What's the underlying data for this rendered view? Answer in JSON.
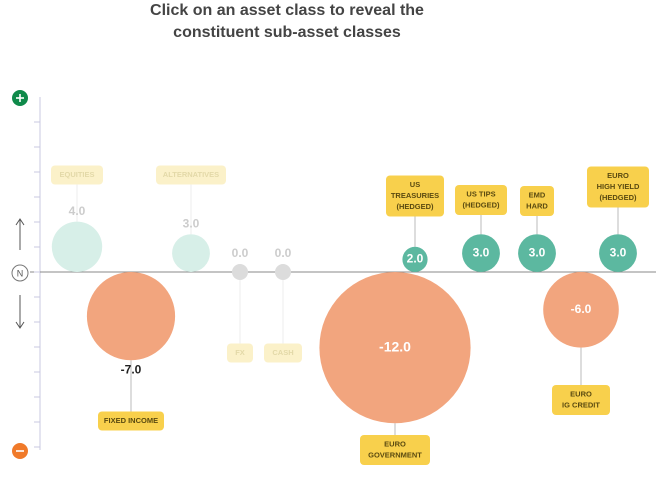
{
  "chart_data": {
    "type": "bubble",
    "title": [
      "Click on an asset class to reveal the",
      "constituent sub-asset classes"
    ],
    "axis_label": "N",
    "colors": {
      "positive": "#5cb8a0",
      "negative": "#f2a57e",
      "zero": "#dcdcdc",
      "faded": "#d7efe8",
      "tag": "#f8d04c",
      "tag_faded": "#fbf1c9"
    },
    "asset_classes": {
      "categories": [
        [
          "EQUITIES"
        ],
        [
          "FIXED INCOME"
        ],
        [
          "ALTERNATIVES"
        ],
        [
          "FX"
        ],
        [
          "CASH"
        ]
      ],
      "values": [
        4,
        -7,
        3,
        0,
        0
      ],
      "value_labels": [
        "4.0",
        "-7.0",
        "3.0",
        "0.0",
        "0.0"
      ],
      "selected": 1
    },
    "sub_asset_classes": {
      "categories": [
        [
          "US",
          "TREASURIES",
          "(HEDGED)"
        ],
        [
          "EURO",
          "GOVERNMENT"
        ],
        [
          "US TIPS",
          "(HEDGED)"
        ],
        [
          "EMD",
          "HARD"
        ],
        [
          "EURO",
          "IG CREDIT"
        ],
        [
          "EURO",
          "HIGH YIELD",
          "(HEDGED)"
        ]
      ],
      "values": [
        2,
        -12,
        3,
        3,
        -6,
        3
      ],
      "value_labels": [
        "2.0",
        "-12.0",
        "3.0",
        "3.0",
        "-6.0",
        "3.0"
      ]
    }
  }
}
